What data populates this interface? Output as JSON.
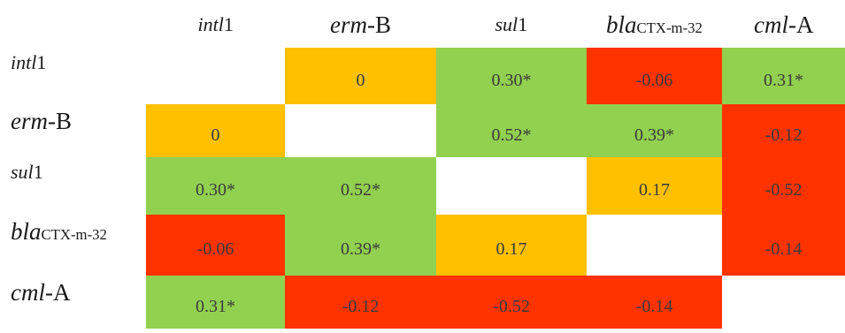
{
  "matrix": {
    "columns": [
      {
        "italic": "intl",
        "suffix": "1",
        "size": "small"
      },
      {
        "italic": "erm",
        "suffix": "-B",
        "size": "large"
      },
      {
        "italic": "sul",
        "suffix": "1",
        "size": "small"
      },
      {
        "italic": "bla",
        "suffix": "CTX-m-32",
        "size": "large"
      },
      {
        "italic": "cml",
        "suffix": "-A",
        "size": "large"
      }
    ],
    "rows": [
      {
        "italic": "intl",
        "suffix": "1",
        "size": "small"
      },
      {
        "italic": "erm",
        "suffix": "-B",
        "size": "large"
      },
      {
        "italic": "sul",
        "suffix": "1",
        "size": "small"
      },
      {
        "italic": "bla",
        "suffix": "CTX-m-32",
        "size": "large"
      },
      {
        "italic": "cml",
        "suffix": "-A",
        "size": "large"
      }
    ],
    "cells": [
      [
        {
          "v": "",
          "c": "empty"
        },
        {
          "v": "0",
          "c": "orange"
        },
        {
          "v": "0.30*",
          "c": "green"
        },
        {
          "v": "-0.06",
          "c": "red"
        },
        {
          "v": "0.31*",
          "c": "green"
        }
      ],
      [
        {
          "v": "0",
          "c": "orange"
        },
        {
          "v": "",
          "c": "empty"
        },
        {
          "v": "0.52*",
          "c": "green"
        },
        {
          "v": "0.39*",
          "c": "green"
        },
        {
          "v": "-0.12",
          "c": "red"
        }
      ],
      [
        {
          "v": "0.30*",
          "c": "green"
        },
        {
          "v": "0.52*",
          "c": "green"
        },
        {
          "v": "",
          "c": "empty"
        },
        {
          "v": "0.17",
          "c": "orange"
        },
        {
          "v": "-0.52",
          "c": "red"
        }
      ],
      [
        {
          "v": "-0.06",
          "c": "red"
        },
        {
          "v": "0.39*",
          "c": "green"
        },
        {
          "v": "0.17",
          "c": "orange"
        },
        {
          "v": "",
          "c": "empty"
        },
        {
          "v": "-0.14",
          "c": "red"
        }
      ],
      [
        {
          "v": "0.31*",
          "c": "green"
        },
        {
          "v": "-0.12",
          "c": "red"
        },
        {
          "v": "-0.52",
          "c": "red"
        },
        {
          "v": "-0.14",
          "c": "red"
        },
        {
          "v": "",
          "c": "empty"
        }
      ]
    ],
    "colors": {
      "green": "#92d050",
      "orange": "#ffc000",
      "red": "#ff3300"
    }
  }
}
